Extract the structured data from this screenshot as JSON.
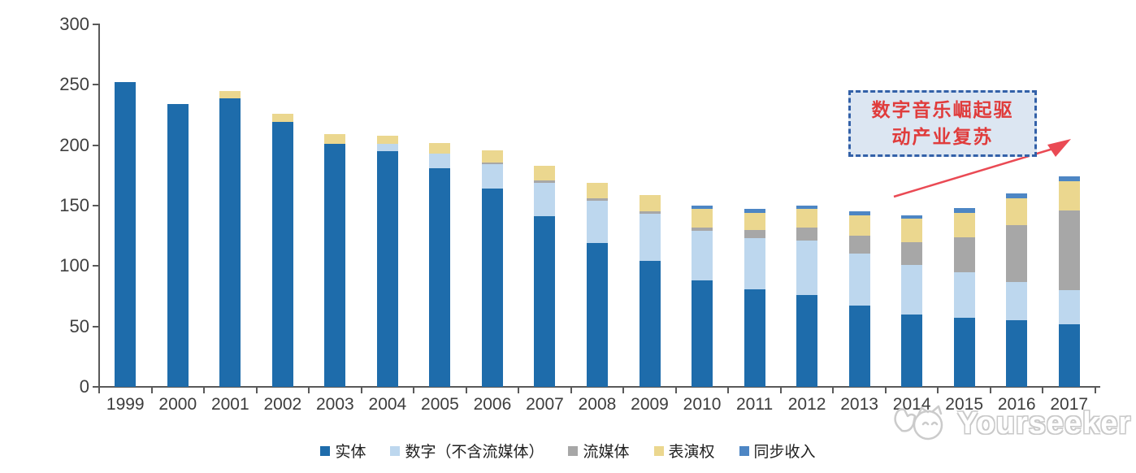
{
  "chart_data": {
    "type": "bar",
    "stacked": true,
    "categories": [
      "1999",
      "2000",
      "2001",
      "2002",
      "2003",
      "2004",
      "2005",
      "2006",
      "2007",
      "2008",
      "2009",
      "2010",
      "2011",
      "2012",
      "2013",
      "2014",
      "2015",
      "2016",
      "2017"
    ],
    "series": [
      {
        "name": "实体",
        "color": "#1E6CAB",
        "values": [
          252,
          234,
          239,
          219,
          201,
          195,
          181,
          164,
          141,
          119,
          104,
          88,
          81,
          76,
          67,
          60,
          57,
          55,
          52
        ]
      },
      {
        "name": "数字（不含流媒体）",
        "color": "#BDD7EE",
        "values": [
          0,
          0,
          0,
          0,
          0,
          6,
          12,
          20,
          28,
          35,
          39,
          41,
          42,
          45,
          43,
          41,
          38,
          32,
          28
        ]
      },
      {
        "name": "流媒体",
        "color": "#A7A7A7",
        "values": [
          0,
          0,
          0,
          0,
          0,
          0,
          0,
          2,
          2,
          2,
          2,
          3,
          7,
          11,
          15,
          19,
          29,
          47,
          66
        ]
      },
      {
        "name": "表演权",
        "color": "#EBD78F",
        "values": [
          0,
          0,
          6,
          7,
          8,
          7,
          9,
          10,
          12,
          13,
          14,
          15,
          14,
          15,
          17,
          19,
          20,
          22,
          24
        ]
      },
      {
        "name": "同步收入",
        "color": "#4D86C4",
        "values": [
          0,
          0,
          0,
          0,
          0,
          0,
          0,
          0,
          0,
          0,
          0,
          3,
          3,
          3,
          3,
          3,
          4,
          4,
          4
        ]
      }
    ],
    "title": "",
    "xlabel": "",
    "ylabel": "",
    "ylim": [
      0,
      300
    ],
    "yticks": [
      0,
      50,
      100,
      150,
      200,
      250,
      300
    ],
    "grid": false,
    "legend_position": "bottom",
    "axis_color": "#595959",
    "tick_label_color": "#3f3f3f"
  },
  "annotation": {
    "line1": "数字音乐崛起驱",
    "line2": "动产业复苏",
    "text_color": "#E03C3C",
    "box_fill": "#DCE6F2",
    "box_border": "#3361A8",
    "arrow_color": "#EA4A54"
  },
  "watermark": {
    "text": "Yourseeker"
  }
}
